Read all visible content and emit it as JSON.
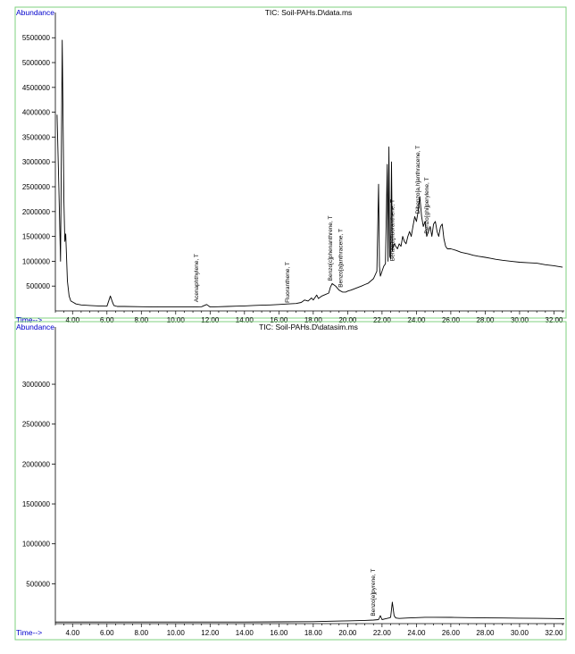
{
  "colors": {
    "frame": "#7fd07f",
    "axis": "#000000",
    "label_blue": "#0000cc",
    "trace": "#000000"
  },
  "chart_data": [
    {
      "type": "line",
      "title": "TIC: Soil-PAHs.D\\data.ms",
      "ylabel": "Abundance",
      "xlabel": "Time-->",
      "xlim": [
        3.0,
        32.6
      ],
      "ylim": [
        0,
        5900000
      ],
      "x_ticks": [
        "4.00",
        "6.00",
        "8.00",
        "10.00",
        "12.00",
        "14.00",
        "16.00",
        "18.00",
        "20.00",
        "22.00",
        "24.00",
        "26.00",
        "28.00",
        "30.00",
        "32.00"
      ],
      "x_tick_values": [
        4,
        6,
        8,
        10,
        12,
        14,
        16,
        18,
        20,
        22,
        24,
        26,
        28,
        30,
        32
      ],
      "y_ticks": [
        "500000",
        "1000000",
        "1500000",
        "2000000",
        "2500000",
        "3000000",
        "3500000",
        "4000000",
        "4500000",
        "5000000",
        "5500000"
      ],
      "y_tick_values": [
        500000,
        1000000,
        1500000,
        2000000,
        2500000,
        3000000,
        3500000,
        4000000,
        4500000,
        5000000,
        5500000
      ],
      "annotations": [
        {
          "text": "Acenaphthylene, T",
          "x": 11.3,
          "y": 120000
        },
        {
          "text": "Fluoranthene, T",
          "x": 16.6,
          "y": 110000
        },
        {
          "text": "Benzo[c]phenanthrene, T",
          "x": 19.1,
          "y": 550000
        },
        {
          "text": "Benzo[a]anthracene, T",
          "x": 19.7,
          "y": 420000
        },
        {
          "text": "Benzo[b]fluoranthene, T",
          "x": 22.7,
          "y": 950000
        },
        {
          "text": "Dibenzo[a,h]anthracene, T",
          "x": 24.2,
          "y": 1900000
        },
        {
          "text": "Benzo[ghi]perylene, T",
          "x": 24.7,
          "y": 1500000
        }
      ],
      "series": [
        {
          "x": [
            3.1,
            3.2,
            3.3,
            3.4,
            3.5,
            3.55,
            3.6,
            3.7,
            3.8,
            3.9,
            4.0,
            4.2,
            4.5,
            5.0,
            5.5,
            6.0,
            6.2,
            6.3,
            6.4,
            6.6,
            7.0,
            8.0,
            9.0,
            10.0,
            11.0,
            11.5,
            11.8,
            12.0,
            12.5,
            13.0,
            13.5,
            14.0,
            14.5,
            15.0,
            15.5,
            16.0,
            16.5,
            17.0,
            17.3,
            17.5,
            17.7,
            17.9,
            18.0,
            18.2,
            18.3,
            18.5,
            18.7,
            18.9,
            19.0,
            19.1,
            19.3,
            19.5,
            19.7,
            19.9,
            20.0,
            20.2,
            20.5,
            20.8,
            21.0,
            21.2,
            21.5,
            21.7,
            21.8,
            21.85,
            21.9,
            22.0,
            22.1,
            22.2,
            22.3,
            22.35,
            22.4,
            22.45,
            22.5,
            22.55,
            22.6,
            22.65,
            22.7,
            22.8,
            22.9,
            23.0,
            23.1,
            23.2,
            23.3,
            23.4,
            23.5,
            23.6,
            23.7,
            23.8,
            23.9,
            24.0,
            24.1,
            24.2,
            24.3,
            24.4,
            24.5,
            24.6,
            24.7,
            24.8,
            24.9,
            25.0,
            25.1,
            25.2,
            25.3,
            25.4,
            25.5,
            25.6,
            25.7,
            25.8,
            26.0,
            26.3,
            26.6,
            27.0,
            27.3,
            27.6,
            28.0,
            28.3,
            28.6,
            29.0,
            29.5,
            30.0,
            30.5,
            31.0,
            31.5,
            32.0,
            32.5
          ],
          "y": [
            3950000,
            2500000,
            1000000,
            5450000,
            2200000,
            1400000,
            1550000,
            600000,
            300000,
            200000,
            180000,
            140000,
            120000,
            110000,
            100000,
            95000,
            300000,
            200000,
            110000,
            90000,
            90000,
            85000,
            80000,
            80000,
            80000,
            85000,
            130000,
            80000,
            85000,
            90000,
            95000,
            100000,
            110000,
            115000,
            120000,
            130000,
            140000,
            150000,
            170000,
            220000,
            200000,
            260000,
            220000,
            320000,
            250000,
            300000,
            330000,
            360000,
            480000,
            550000,
            500000,
            420000,
            380000,
            380000,
            400000,
            420000,
            460000,
            500000,
            530000,
            560000,
            650000,
            800000,
            2550000,
            900000,
            700000,
            800000,
            900000,
            950000,
            2950000,
            1000000,
            3300000,
            1100000,
            1050000,
            3000000,
            1200000,
            1300000,
            1350000,
            1300000,
            1250000,
            1350000,
            1300000,
            1500000,
            1400000,
            1350000,
            1500000,
            1600000,
            1500000,
            1700000,
            1900000,
            1800000,
            2000000,
            2300000,
            1900000,
            1700000,
            1800000,
            1500000,
            1600000,
            1700000,
            1500000,
            1750000,
            1800000,
            1600000,
            1500000,
            1700000,
            1750000,
            1450000,
            1300000,
            1250000,
            1250000,
            1220000,
            1180000,
            1150000,
            1120000,
            1100000,
            1080000,
            1060000,
            1040000,
            1020000,
            1000000,
            980000,
            970000,
            960000,
            930000,
            910000,
            880000
          ]
        }
      ]
    },
    {
      "type": "line",
      "title": "TIC: Soil-PAHs.D\\datasim.ms",
      "ylabel": "Abundance",
      "xlabel": "Time-->",
      "xlim": [
        3.0,
        32.6
      ],
      "ylim": [
        0,
        3650000
      ],
      "x_ticks": [
        "4.00",
        "6.00",
        "8.00",
        "10.00",
        "12.00",
        "14.00",
        "16.00",
        "18.00",
        "20.00",
        "22.00",
        "24.00",
        "26.00",
        "28.00",
        "30.00",
        "32.00"
      ],
      "x_tick_values": [
        4,
        6,
        8,
        10,
        12,
        14,
        16,
        18,
        20,
        22,
        24,
        26,
        28,
        30,
        32
      ],
      "y_ticks": [
        "500000",
        "1000000",
        "1500000",
        "2000000",
        "2500000",
        "3000000"
      ],
      "y_tick_values": [
        500000,
        1000000,
        1500000,
        2000000,
        2500000,
        3000000
      ],
      "annotations": [
        {
          "text": "Benzo[e]pyrene, T",
          "x": 21.6,
          "y": 60000
        }
      ],
      "series": [
        {
          "x": [
            3.0,
            4.0,
            6.0,
            8.0,
            10.0,
            12.0,
            14.0,
            16.0,
            18.0,
            19.0,
            20.0,
            21.0,
            21.5,
            21.8,
            21.9,
            22.0,
            22.2,
            22.4,
            22.5,
            22.6,
            22.7,
            22.8,
            23.0,
            23.5,
            24.0,
            24.5,
            25.0,
            26.0,
            27.0,
            28.0,
            29.0,
            30.0,
            31.0,
            32.0,
            32.6
          ],
          "y": [
            20000,
            20000,
            20000,
            20000,
            20000,
            20000,
            20000,
            22000,
            25000,
            30000,
            35000,
            40000,
            45000,
            50000,
            100000,
            50000,
            60000,
            70000,
            80000,
            270000,
            100000,
            70000,
            65000,
            70000,
            75000,
            80000,
            80000,
            78000,
            75000,
            72000,
            70000,
            68000,
            66000,
            64000,
            62000
          ]
        }
      ]
    }
  ]
}
